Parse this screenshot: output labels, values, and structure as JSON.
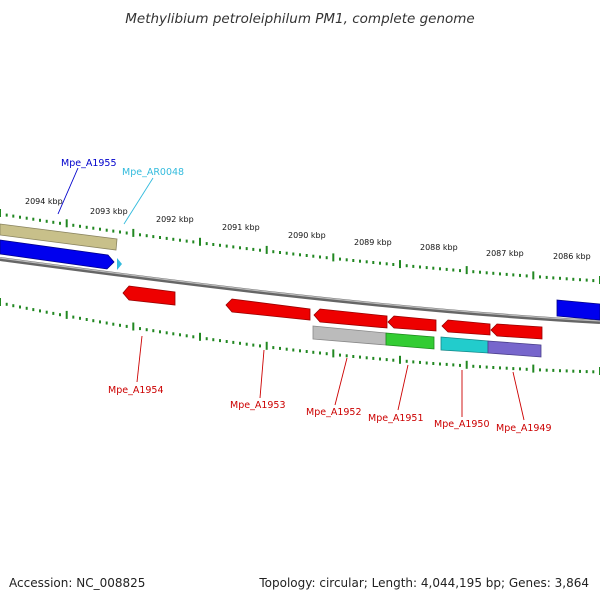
{
  "title": "Methylibium petroleiphilum PM1, complete genome",
  "footer": {
    "accession": "Accession: NC_008825",
    "summary": "Topology: circular; Length: 4,044,195 bp; Genes: 3,864"
  },
  "tick_labels": [
    "2094 kbp",
    "2093 kbp",
    "2092 kbp",
    "2091 kbp",
    "2090 kbp",
    "2089 kbp",
    "2088 kbp",
    "2087 kbp",
    "2086 kbp"
  ],
  "gene_labels": [
    {
      "text": "Mpe_A1955",
      "color": "#0000cc"
    },
    {
      "text": "Mpe_AR0048",
      "color": "#33bbdd"
    },
    {
      "text": "Mpe_A1954",
      "color": "#cc0000"
    },
    {
      "text": "Mpe_A1953",
      "color": "#cc0000"
    },
    {
      "text": "Mpe_A1952",
      "color": "#cc0000"
    },
    {
      "text": "Mpe_A1951",
      "color": "#cc0000"
    },
    {
      "text": "Mpe_A1950",
      "color": "#cc0000"
    },
    {
      "text": "Mpe_A1949",
      "color": "#cc0000"
    }
  ],
  "colors": {
    "forward_gene": "#0000ee",
    "reverse_gene": "#ee0000",
    "rna_gene": "#33bbdd",
    "tick": "#228822",
    "backbone": "#888888",
    "khaki_feature": "#c8c08a",
    "grey_feature": "#bbbbbb",
    "green_feature": "#33cc33",
    "cyan_feature": "#22cccc",
    "purple_feature": "#7766cc"
  }
}
